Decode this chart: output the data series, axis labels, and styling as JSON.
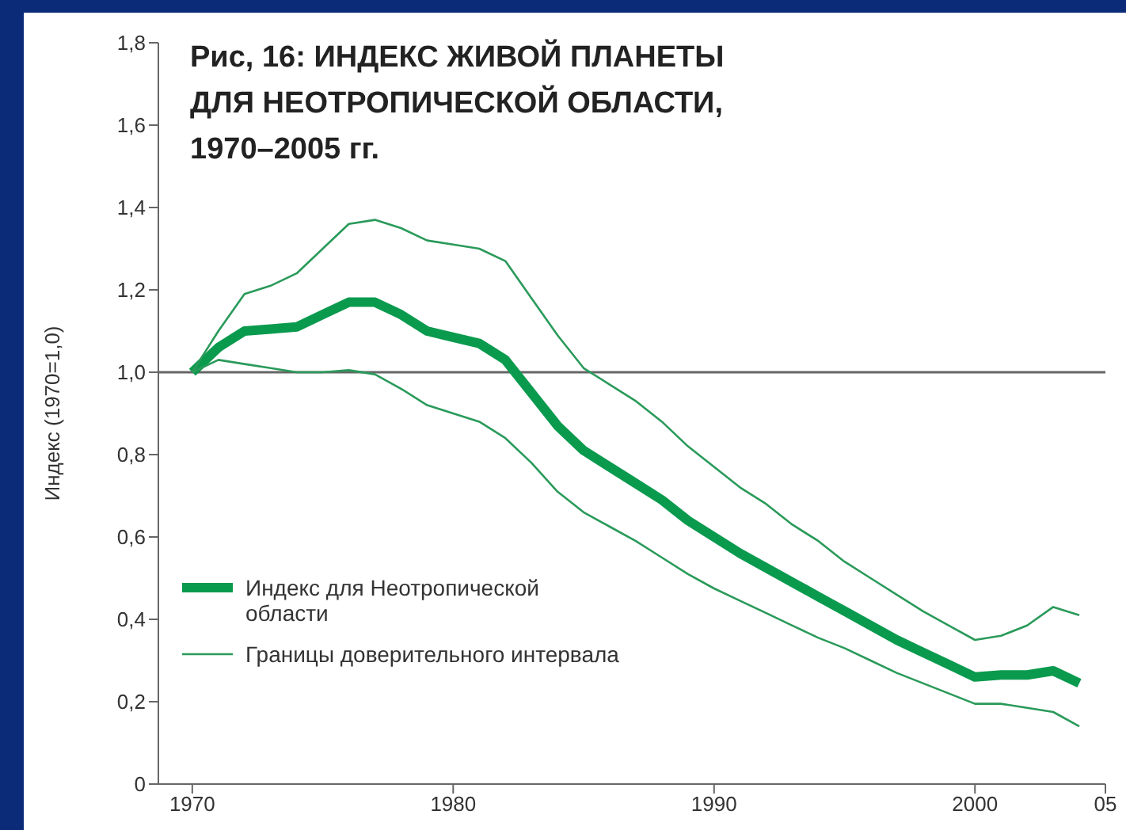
{
  "chart_data": {
    "type": "line",
    "title": "Рис, 16: ИНДЕКС ЖИВОЙ ПЛАНЕТЫ ДЛЯ НЕОТРОПИЧЕСКОЙ ОБЛАСТИ, 1970–2005 гг.",
    "ylabel": "Индекс (1970=1,0)",
    "x": [
      1970,
      1971,
      1972,
      1973,
      1974,
      1975,
      1976,
      1977,
      1978,
      1979,
      1980,
      1981,
      1982,
      1983,
      1984,
      1985,
      1986,
      1987,
      1988,
      1989,
      1990,
      1991,
      1992,
      1993,
      1994,
      1995,
      1996,
      1997,
      1998,
      1999,
      2000,
      2001,
      2002,
      2003,
      2004
    ],
    "series": [
      {
        "name": "Индекс для Неотропической области",
        "color": "#0a9a4e",
        "values": [
          1.0,
          1.06,
          1.1,
          1.105,
          1.11,
          1.14,
          1.17,
          1.17,
          1.14,
          1.1,
          1.085,
          1.07,
          1.03,
          0.95,
          0.87,
          0.81,
          0.77,
          0.73,
          0.69,
          0.64,
          0.6,
          0.56,
          0.525,
          0.49,
          0.455,
          0.42,
          0.385,
          0.35,
          0.32,
          0.29,
          0.26,
          0.265,
          0.265,
          0.275,
          0.245
        ]
      },
      {
        "name": "Границы доверительного интервала",
        "color": "#2a9a5a",
        "values": [
          1.0,
          1.1,
          1.19,
          1.21,
          1.24,
          1.3,
          1.36,
          1.37,
          1.35,
          1.32,
          1.31,
          1.3,
          1.27,
          1.18,
          1.09,
          1.01,
          0.97,
          0.93,
          0.88,
          0.82,
          0.77,
          0.72,
          0.68,
          0.63,
          0.59,
          0.54,
          0.5,
          0.46,
          0.42,
          0.385,
          0.35,
          0.36,
          0.385,
          0.43,
          0.41
        ]
      },
      {
        "color": "#2a9a5a",
        "values": [
          1.0,
          1.03,
          1.02,
          1.01,
          1.0,
          1.0,
          1.005,
          0.995,
          0.96,
          0.92,
          0.9,
          0.88,
          0.84,
          0.78,
          0.71,
          0.66,
          0.625,
          0.59,
          0.55,
          0.51,
          0.475,
          0.445,
          0.415,
          0.385,
          0.355,
          0.33,
          0.3,
          0.27,
          0.245,
          0.22,
          0.195,
          0.195,
          0.185,
          0.175,
          0.14
        ]
      }
    ],
    "xlim": [
      1968.7,
      2005
    ],
    "xticks": [
      1970,
      1980,
      1990,
      2000,
      {
        "value": 2005,
        "label": "05"
      }
    ],
    "ylim": [
      0,
      1.8
    ],
    "yticks": [
      0,
      {
        "value": 0.2,
        "label": "0,2"
      },
      {
        "value": 0.4,
        "label": "0,4"
      },
      {
        "value": 0.6,
        "label": "0,6"
      },
      {
        "value": 0.8,
        "label": "0,8"
      },
      {
        "value": 1.0,
        "label": "1,0"
      },
      {
        "value": 1.2,
        "label": "1,2"
      },
      {
        "value": 1.4,
        "label": "1,4"
      },
      {
        "value": 1.6,
        "label": "1,6"
      },
      {
        "value": 1.8,
        "label": "1,8"
      }
    ],
    "ref_lines": [
      {
        "axis": "y",
        "value": 1.0,
        "color": "#666666"
      }
    ],
    "grid": false,
    "legend": "bottom left",
    "marker": "none",
    "line_style": "solid"
  }
}
